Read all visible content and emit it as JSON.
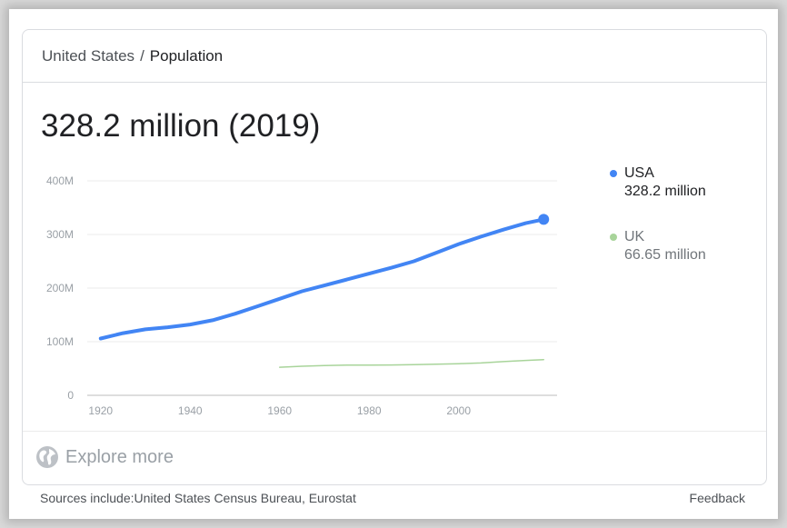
{
  "breadcrumb": {
    "parent": "United States",
    "separator": "/",
    "current": "Population"
  },
  "headline": "328.2 million (2019)",
  "legend": [
    {
      "name": "USA",
      "value": "328.2 million",
      "color": "#4285f4"
    },
    {
      "name": "UK",
      "value": "66.65 million",
      "color": "#a8d49a"
    }
  ],
  "explore": {
    "label": "Explore more",
    "icon": "globe-icon"
  },
  "footer": {
    "sources": "Sources include:United States Census Bureau, Eurostat",
    "feedback": "Feedback"
  },
  "chart_data": {
    "type": "line",
    "xlim": [
      1917,
      2022
    ],
    "ylim": [
      0,
      400
    ],
    "x_ticks": [
      1920,
      1940,
      1960,
      1980,
      2000
    ],
    "y_ticks": [
      {
        "value": 0,
        "label": "0"
      },
      {
        "value": 100,
        "label": "100M"
      },
      {
        "value": 200,
        "label": "200M"
      },
      {
        "value": 300,
        "label": "300M"
      },
      {
        "value": 400,
        "label": "400M"
      }
    ],
    "grid": true,
    "legend_position": "right",
    "series": [
      {
        "name": "USA",
        "color": "#4285f4",
        "x": [
          1920,
          1925,
          1930,
          1935,
          1940,
          1945,
          1950,
          1955,
          1960,
          1965,
          1970,
          1975,
          1980,
          1985,
          1990,
          1995,
          2000,
          2005,
          2010,
          2015,
          2019
        ],
        "y": [
          106,
          116,
          123,
          127,
          132,
          140,
          152,
          166,
          180,
          194,
          205,
          216,
          227,
          238,
          250,
          266,
          282,
          296,
          309,
          321,
          328.2
        ],
        "end_marker": true
      },
      {
        "name": "UK",
        "color": "#a8d49a",
        "x": [
          1960,
          1965,
          1970,
          1975,
          1980,
          1985,
          1990,
          1995,
          2000,
          2005,
          2010,
          2015,
          2019
        ],
        "y": [
          52.4,
          54.3,
          55.6,
          56.2,
          56.3,
          56.6,
          57.2,
          58.0,
          58.9,
          60.4,
          62.8,
          65.1,
          66.65
        ],
        "end_marker": false
      }
    ]
  }
}
